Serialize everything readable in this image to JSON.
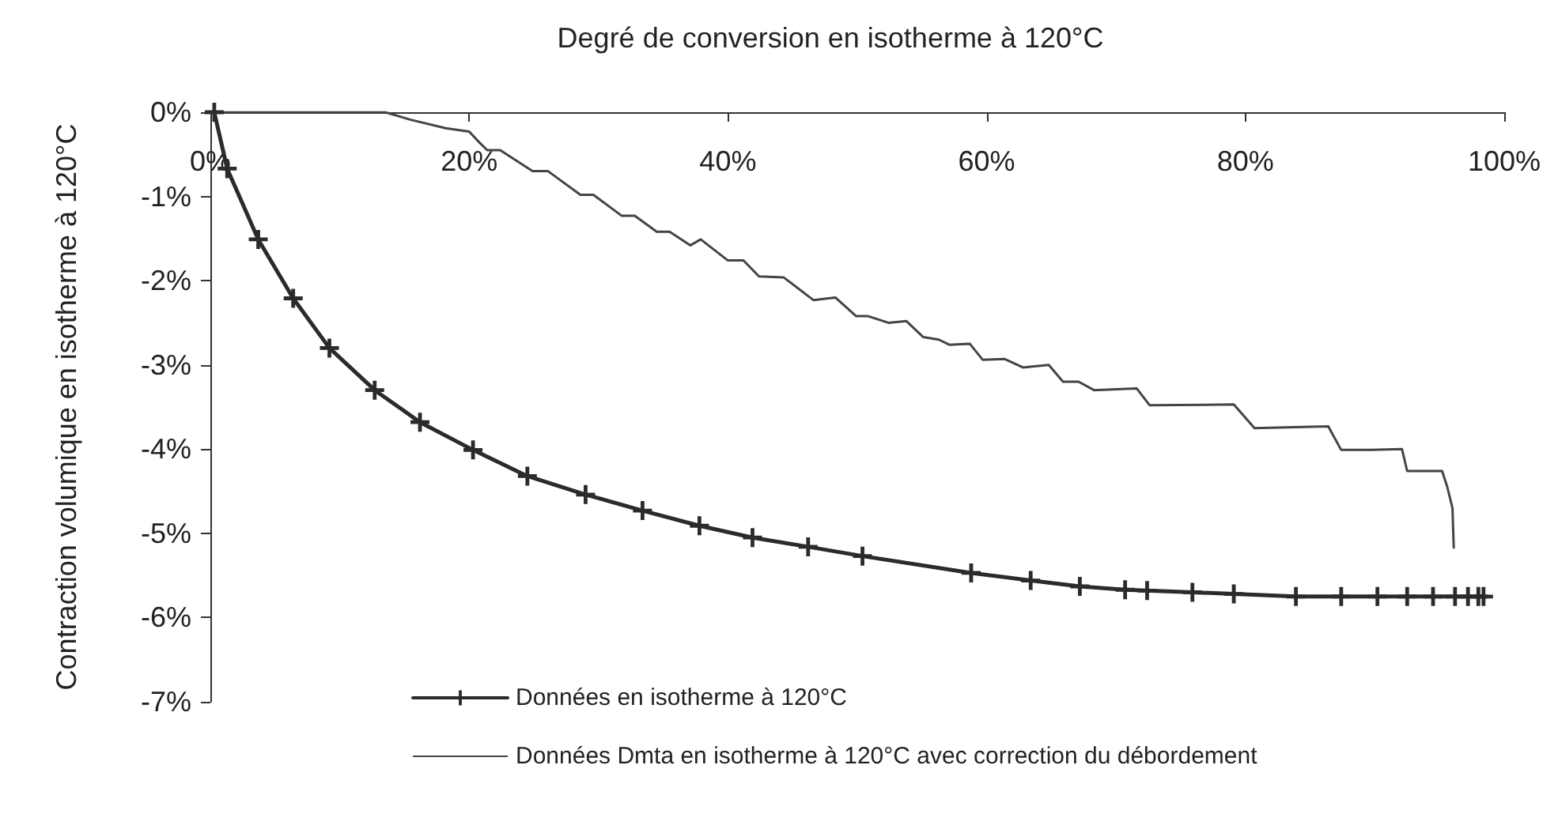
{
  "chart_data": {
    "type": "line",
    "title": "Degré de conversion en isotherme à 120°C",
    "ylabel": "Contraction volumique en isotherme à 120°C",
    "xlim": [
      0,
      100
    ],
    "xticks": [
      {
        "value": 0,
        "label": "0%"
      },
      {
        "value": 20,
        "label": "20%"
      },
      {
        "value": 40,
        "label": "40%"
      },
      {
        "value": 60,
        "label": "60%"
      },
      {
        "value": 80,
        "label": "80%"
      },
      {
        "value": 100,
        "label": "100%"
      }
    ],
    "ylim": [
      -7,
      0
    ],
    "yticks": [
      {
        "value": -7,
        "label": "-7%"
      },
      {
        "value": -6,
        "label": "-6%"
      },
      {
        "value": -5,
        "label": "-5%"
      },
      {
        "value": -4,
        "label": "-4%"
      },
      {
        "value": -3,
        "label": "-3%"
      },
      {
        "value": -2,
        "label": "-2%"
      },
      {
        "value": -1,
        "label": "-1%"
      },
      {
        "value": 0,
        "label": "0%"
      }
    ],
    "grid": false,
    "legend": "bottom",
    "series": [
      {
        "name": "Données en isotherme à 120°C",
        "color": "#2b2b2b",
        "marker": "cross",
        "x": [
          0.3,
          1.3,
          3.7,
          6.4,
          9.2,
          12.7,
          16.2,
          20.3,
          24.5,
          29.0,
          33.4,
          37.8,
          41.9,
          46.2,
          50.4,
          58.8,
          63.4,
          67.2,
          70.7,
          72.4,
          75.9,
          79.1,
          83.9,
          87.4,
          90.2,
          92.5,
          94.5,
          96.2,
          97.2,
          98.0,
          98.4
        ],
        "values": [
          0,
          -0.67,
          -1.51,
          -2.21,
          -2.8,
          -3.3,
          -3.68,
          -4.01,
          -4.32,
          -4.54,
          -4.73,
          -4.91,
          -5.05,
          -5.16,
          -5.27,
          -5.47,
          -5.56,
          -5.63,
          -5.67,
          -5.68,
          -5.7,
          -5.72,
          -5.75,
          -5.75,
          -5.75,
          -5.75,
          -5.75,
          -5.75,
          -5.75,
          -5.75,
          -5.75
        ]
      },
      {
        "name": "Données Dmta en isotherme à 120°C avec correction du débordement",
        "color": "#444444",
        "marker": "none",
        "x": [
          0.3,
          13.5,
          15.5,
          18.2,
          20.0,
          20.8,
          21.4,
          22.4,
          24.9,
          26.1,
          28.6,
          29.6,
          31.8,
          32.8,
          34.5,
          35.5,
          37.1,
          37.9,
          40.0,
          41.2,
          42.4,
          44.3,
          46.6,
          48.3,
          49.9,
          50.8,
          52.4,
          53.8,
          55.1,
          56.3,
          57.1,
          58.7,
          59.7,
          61.4,
          62.8,
          64.8,
          65.9,
          67.1,
          68.3,
          71.6,
          72.6,
          79.1,
          80.7,
          86.4,
          87.4,
          89.7,
          92.1,
          92.5,
          95.2,
          95.6,
          96.0,
          96.1
        ],
        "values": [
          0,
          0,
          -0.09,
          -0.19,
          -0.23,
          -0.36,
          -0.45,
          -0.45,
          -0.7,
          -0.7,
          -0.98,
          -0.98,
          -1.23,
          -1.23,
          -1.42,
          -1.42,
          -1.58,
          -1.51,
          -1.76,
          -1.76,
          -1.95,
          -1.96,
          -2.23,
          -2.2,
          -2.42,
          -2.42,
          -2.5,
          -2.48,
          -2.67,
          -2.7,
          -2.76,
          -2.75,
          -2.94,
          -2.93,
          -3.03,
          -3.0,
          -3.2,
          -3.2,
          -3.3,
          -3.28,
          -3.48,
          -3.47,
          -3.75,
          -3.73,
          -4.01,
          -4.01,
          -4.0,
          -4.26,
          -4.26,
          -4.45,
          -4.7,
          -5.17
        ]
      }
    ]
  }
}
